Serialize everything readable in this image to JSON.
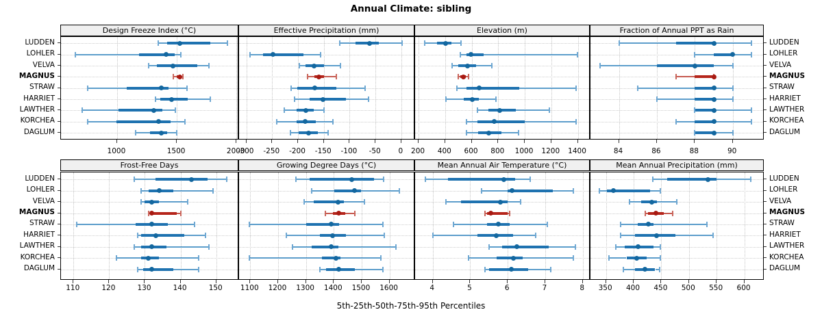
{
  "title": "Annual Climate: sibling",
  "footer": "5th-25th-50th-75th-95th Percentiles",
  "sites": [
    "LUDDEN",
    "LOHLER",
    "VELVA",
    "MAGNUS",
    "STRAW",
    "HARRIET",
    "LAWTHER",
    "KORCHEA",
    "DAGLUM"
  ],
  "highlight_site": "MAGNUS",
  "colors": {
    "blue_thick": "#1e72b0",
    "blue_thin": "#5c9dcb",
    "blue_cap": "#6ea7d2",
    "blue_dot": "#13679f",
    "red_thick": "#b5251b",
    "red_thin": "#c65a50",
    "red_cap": "#c9655b",
    "red_dot": "#a81a12",
    "strip_bg": "#f0f0f0",
    "panel_border": "#000000",
    "grid": "#c8c8c8"
  },
  "chart_data": [
    {
      "type": "dotplot-percentiles",
      "title": "Design Freeze Index (°C)",
      "slug": "design-freeze-index",
      "row": 0,
      "col": 0,
      "xlim": [
        530,
        2010
      ],
      "ticks": [
        1000,
        1500,
        2000
      ],
      "tick_labels": [
        "1000",
        "1500",
        "2000"
      ],
      "percentile_labels": [
        "p5",
        "p25",
        "p50",
        "p75",
        "p95"
      ],
      "series": [
        {
          "site": "LUDDEN",
          "p": [
            1345,
            1420,
            1527,
            1778,
            1925
          ]
        },
        {
          "site": "LOHLER",
          "p": [
            652,
            1182,
            1413,
            1483,
            1536
          ]
        },
        {
          "site": "VELVA",
          "p": [
            1267,
            1334,
            1470,
            1674,
            1769
          ]
        },
        {
          "site": "MAGNUS",
          "p": [
            1470,
            1500,
            1523,
            1537,
            1551
          ]
        },
        {
          "site": "STRAW",
          "p": [
            752,
            1078,
            1368,
            1428,
            1585
          ]
        },
        {
          "site": "HARRIET",
          "p": [
            1320,
            1362,
            1456,
            1589,
            1778
          ]
        },
        {
          "site": "LAWTHER",
          "p": [
            709,
            1011,
            1309,
            1377,
            1490
          ]
        },
        {
          "site": "KORCHEA",
          "p": [
            752,
            993,
            1347,
            1447,
            1566
          ]
        },
        {
          "site": "DAGLUM",
          "p": [
            1153,
            1277,
            1368,
            1422,
            1498
          ]
        }
      ]
    },
    {
      "type": "dotplot-percentiles",
      "title": "Effective Precipitation (mm)",
      "slug": "effective-precipitation",
      "row": 0,
      "col": 1,
      "xlim": [
        -314,
        24
      ],
      "ticks": [
        -300,
        -250,
        -200,
        -150,
        -100,
        -50,
        0
      ],
      "tick_labels": [
        "-300",
        "-250",
        "-200",
        "-150",
        "-100",
        "-50",
        "0"
      ],
      "percentile_labels": [
        "p5",
        "p25",
        "p50",
        "p75",
        "p95"
      ],
      "series": [
        {
          "site": "LUDDEN",
          "p": [
            -119,
            -89,
            -62,
            -43,
            2
          ]
        },
        {
          "site": "LOHLER",
          "p": [
            -293,
            -267,
            -248,
            -189,
            -156
          ]
        },
        {
          "site": "VELVA",
          "p": [
            -197,
            -185,
            -169,
            -150,
            -118
          ]
        },
        {
          "site": "MAGNUS",
          "p": [
            -181,
            -168,
            -159,
            -150,
            -126
          ]
        },
        {
          "site": "STRAW",
          "p": [
            -213,
            -201,
            -168,
            -126,
            -70
          ]
        },
        {
          "site": "HARRIET",
          "p": [
            -207,
            -178,
            -152,
            -107,
            -63
          ]
        },
        {
          "site": "LAWTHER",
          "p": [
            -226,
            -202,
            -185,
            -169,
            -150
          ]
        },
        {
          "site": "KORCHEA",
          "p": [
            -241,
            -203,
            -186,
            -166,
            -132
          ]
        },
        {
          "site": "DAGLUM",
          "p": [
            -215,
            -199,
            -179,
            -161,
            -142
          ]
        }
      ]
    },
    {
      "type": "dotplot-percentiles",
      "title": "Elevation (m)",
      "slug": "elevation",
      "row": 0,
      "col": 2,
      "xlim": [
        174,
        1485
      ],
      "ticks": [
        200,
        400,
        600,
        800,
        1000,
        1200,
        1400
      ],
      "tick_labels": [
        "200",
        "400",
        "600",
        "800",
        "1000",
        "1200",
        "1400"
      ],
      "percentile_labels": [
        "p5",
        "p25",
        "p50",
        "p75",
        "p95"
      ],
      "series": [
        {
          "site": "LUDDEN",
          "p": [
            246,
            337,
            402,
            448,
            522
          ]
        },
        {
          "site": "LOHLER",
          "p": [
            513,
            559,
            596,
            692,
            1395
          ]
        },
        {
          "site": "VELVA",
          "p": [
            453,
            499,
            571,
            632,
            750
          ]
        },
        {
          "site": "MAGNUS",
          "p": [
            499,
            514,
            537,
            558,
            576
          ]
        },
        {
          "site": "STRAW",
          "p": [
            487,
            559,
            656,
            957,
            1388
          ]
        },
        {
          "site": "HARRIET",
          "p": [
            405,
            538,
            605,
            656,
            785
          ]
        },
        {
          "site": "LAWTHER",
          "p": [
            644,
            725,
            812,
            935,
            1186
          ]
        },
        {
          "site": "KORCHEA",
          "p": [
            563,
            644,
            768,
            998,
            1385
          ]
        },
        {
          "site": "DAGLUM",
          "p": [
            559,
            650,
            730,
            824,
            955
          ]
        }
      ]
    },
    {
      "type": "dotplot-percentiles",
      "title": "Fraction of Annual PPT as Rain",
      "slug": "fraction-of-annual-ppt-as-rain",
      "row": 0,
      "col": 3,
      "xlim": [
        82.5,
        91.6
      ],
      "ticks": [
        84,
        86,
        88,
        90
      ],
      "tick_labels": [
        "84",
        "86",
        "88",
        "90"
      ],
      "percentile_labels": [
        "p5",
        "p25",
        "p50",
        "p75",
        "p95"
      ],
      "series": [
        {
          "site": "LUDDEN",
          "p": [
            84,
            87,
            89,
            89,
            91
          ]
        },
        {
          "site": "LOHLER",
          "p": [
            88,
            89,
            90,
            90,
            91
          ]
        },
        {
          "site": "VELVA",
          "p": [
            83,
            86,
            88,
            89,
            90
          ]
        },
        {
          "site": "MAGNUS",
          "p": [
            87,
            88,
            89,
            89,
            89
          ]
        },
        {
          "site": "STRAW",
          "p": [
            85,
            88,
            89,
            89,
            90
          ]
        },
        {
          "site": "HARRIET",
          "p": [
            86,
            88,
            89,
            89,
            90
          ]
        },
        {
          "site": "LAWTHER",
          "p": [
            88,
            88,
            89,
            89,
            91
          ]
        },
        {
          "site": "KORCHEA",
          "p": [
            87,
            88,
            89,
            89,
            91
          ]
        },
        {
          "site": "DAGLUM",
          "p": [
            88,
            88,
            89,
            89,
            90
          ]
        }
      ]
    },
    {
      "type": "dotplot-percentiles",
      "title": "Frost-Free Days",
      "slug": "frost-free-days",
      "row": 1,
      "col": 0,
      "xlim": [
        106.5,
        156
      ],
      "ticks": [
        110,
        120,
        130,
        140,
        150
      ],
      "tick_labels": [
        "110",
        "120",
        "130",
        "140",
        "150"
      ],
      "percentile_labels": [
        "p5",
        "p25",
        "p50",
        "p75",
        "p95"
      ],
      "series": [
        {
          "site": "LUDDEN",
          "p": [
            127,
            133,
            143,
            147.5,
            153
          ]
        },
        {
          "site": "LOHLER",
          "p": [
            129,
            131,
            134,
            138,
            149
          ]
        },
        {
          "site": "VELVA",
          "p": [
            129,
            130,
            132,
            134,
            142
          ]
        },
        {
          "site": "MAGNUS",
          "p": [
            131,
            131.5,
            132,
            139,
            140
          ]
        },
        {
          "site": "STRAW",
          "p": [
            111,
            127.5,
            132,
            136.5,
            144
          ]
        },
        {
          "site": "HARRIET",
          "p": [
            128,
            129,
            133,
            141,
            147
          ]
        },
        {
          "site": "LAWTHER",
          "p": [
            127,
            129,
            132,
            136,
            148
          ]
        },
        {
          "site": "KORCHEA",
          "p": [
            122,
            129,
            131,
            134,
            145
          ]
        },
        {
          "site": "DAGLUM",
          "p": [
            128,
            129.5,
            132,
            138,
            145
          ]
        }
      ]
    },
    {
      "type": "dotplot-percentiles",
      "title": "Growing Degree Days (°C)",
      "slug": "growing-degree-days",
      "row": 1,
      "col": 1,
      "xlim": [
        1060,
        1687
      ],
      "ticks": [
        1100,
        1200,
        1300,
        1400,
        1500,
        1600
      ],
      "tick_labels": [
        "1100",
        "1200",
        "1300",
        "1400",
        "1500",
        "1600"
      ],
      "percentile_labels": [
        "p5",
        "p25",
        "p50",
        "p75",
        "p95"
      ],
      "series": [
        {
          "site": "LUDDEN",
          "p": [
            1265,
            1313,
            1465,
            1545,
            1578
          ]
        },
        {
          "site": "LOHLER",
          "p": [
            1321,
            1401,
            1475,
            1497,
            1635
          ]
        },
        {
          "site": "VELVA",
          "p": [
            1294,
            1329,
            1415,
            1437,
            1511
          ]
        },
        {
          "site": "MAGNUS",
          "p": [
            1370,
            1397,
            1417,
            1441,
            1476
          ]
        },
        {
          "site": "STRAW",
          "p": [
            1098,
            1301,
            1391,
            1419,
            1576
          ]
        },
        {
          "site": "HARRIET",
          "p": [
            1230,
            1349,
            1395,
            1443,
            1582
          ]
        },
        {
          "site": "LAWTHER",
          "p": [
            1253,
            1321,
            1390,
            1417,
            1624
          ]
        },
        {
          "site": "KORCHEA",
          "p": [
            1098,
            1358,
            1407,
            1425,
            1570
          ]
        },
        {
          "site": "DAGLUM",
          "p": [
            1350,
            1373,
            1417,
            1476,
            1576
          ]
        }
      ]
    },
    {
      "type": "dotplot-percentiles",
      "title": "Mean Annual Air Temperature (°C)",
      "slug": "mean-annual-air-temperature",
      "row": 1,
      "col": 2,
      "xlim": [
        3.53,
        8.17
      ],
      "ticks": [
        4,
        5,
        6,
        7,
        8
      ],
      "tick_labels": [
        "4",
        "5",
        "6",
        "7",
        "8"
      ],
      "percentile_labels": [
        "p5",
        "p25",
        "p50",
        "p75",
        "p95"
      ],
      "series": [
        {
          "site": "LUDDEN",
          "p": [
            3.8,
            4.4,
            5.9,
            6.2,
            6.6
          ]
        },
        {
          "site": "LOHLER",
          "p": [
            5.3,
            6.0,
            6.12,
            7.2,
            7.75
          ]
        },
        {
          "site": "VELVA",
          "p": [
            4.35,
            4.75,
            5.8,
            6.0,
            6.35
          ]
        },
        {
          "site": "MAGNUS",
          "p": [
            5.4,
            5.45,
            5.55,
            6.0,
            6.05
          ]
        },
        {
          "site": "STRAW",
          "p": [
            4.55,
            5.45,
            5.75,
            6.05,
            7.05
          ]
        },
        {
          "site": "HARRIET",
          "p": [
            4.0,
            5.2,
            5.7,
            6.15,
            6.75
          ]
        },
        {
          "site": "LAWTHER",
          "p": [
            5.5,
            5.85,
            6.25,
            7.1,
            7.8
          ]
        },
        {
          "site": "KORCHEA",
          "p": [
            4.95,
            5.7,
            6.15,
            6.4,
            7.75
          ]
        },
        {
          "site": "DAGLUM",
          "p": [
            5.4,
            5.5,
            6.1,
            6.55,
            7.15
          ]
        }
      ]
    },
    {
      "type": "dotplot-percentiles",
      "title": "Mean Annual Precipitation (mm)",
      "slug": "mean-annual-precipitation",
      "row": 1,
      "col": 3,
      "xlim": [
        322,
        634
      ],
      "ticks": [
        350,
        400,
        450,
        500,
        550,
        600
      ],
      "tick_labels": [
        "350",
        "400",
        "450",
        "500",
        "550",
        "600"
      ],
      "percentile_labels": [
        "p5",
        "p25",
        "p50",
        "p75",
        "p95"
      ],
      "series": [
        {
          "site": "LUDDEN",
          "p": [
            435,
            461,
            534,
            550,
            612
          ]
        },
        {
          "site": "LOHLER",
          "p": [
            338,
            352,
            364,
            430,
            448
          ]
        },
        {
          "site": "VELVA",
          "p": [
            392,
            414,
            433,
            442,
            478
          ]
        },
        {
          "site": "MAGNUS",
          "p": [
            421,
            426,
            440,
            455,
            470
          ]
        },
        {
          "site": "STRAW",
          "p": [
            377,
            408,
            426,
            436,
            532
          ]
        },
        {
          "site": "HARRIET",
          "p": [
            377,
            402,
            442,
            476,
            544
          ]
        },
        {
          "site": "LAWTHER",
          "p": [
            368,
            384,
            408,
            436,
            448
          ]
        },
        {
          "site": "KORCHEA",
          "p": [
            356,
            387,
            406,
            423,
            448
          ]
        },
        {
          "site": "DAGLUM",
          "p": [
            382,
            402,
            421,
            439,
            447
          ]
        }
      ]
    }
  ]
}
